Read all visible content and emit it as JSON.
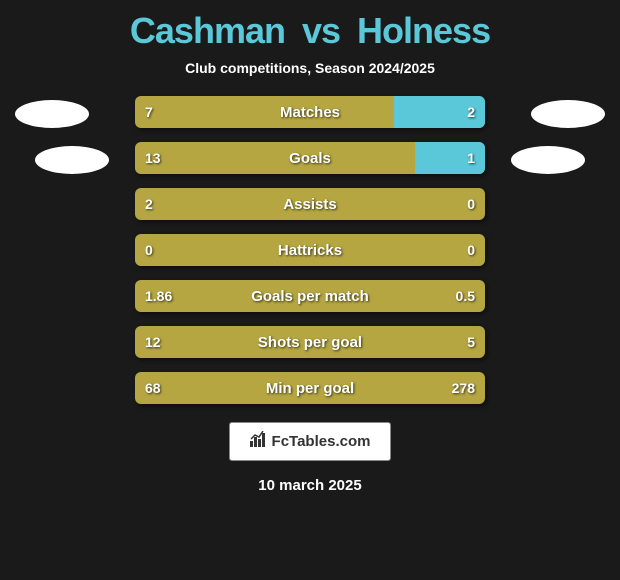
{
  "header": {
    "player_left": "Cashman",
    "vs": "vs",
    "player_right": "Holness",
    "subtitle": "Club competitions, Season 2024/2025"
  },
  "colors": {
    "left_bar": "#b5a642",
    "right_bar": "#5ac8d8",
    "title": "#5ac8d8",
    "background": "#1a1a1a",
    "badge": "#ffffff"
  },
  "stats": [
    {
      "label": "Matches",
      "left_val": "7",
      "right_val": "2",
      "left_pct": 74,
      "right_pct": 26
    },
    {
      "label": "Goals",
      "left_val": "13",
      "right_val": "1",
      "left_pct": 80,
      "right_pct": 20
    },
    {
      "label": "Assists",
      "left_val": "2",
      "right_val": "0",
      "left_pct": 100,
      "right_pct": 0
    },
    {
      "label": "Hattricks",
      "left_val": "0",
      "right_val": "0",
      "left_pct": 100,
      "right_pct": 0
    },
    {
      "label": "Goals per match",
      "left_val": "1.86",
      "right_val": "0.5",
      "left_pct": 100,
      "right_pct": 0
    },
    {
      "label": "Shots per goal",
      "left_val": "12",
      "right_val": "5",
      "left_pct": 100,
      "right_pct": 0
    },
    {
      "label": "Min per goal",
      "left_val": "68",
      "right_val": "278",
      "left_pct": 100,
      "right_pct": 0
    }
  ],
  "footer": {
    "logo_text": "FcTables.com",
    "date": "10 march 2025"
  }
}
